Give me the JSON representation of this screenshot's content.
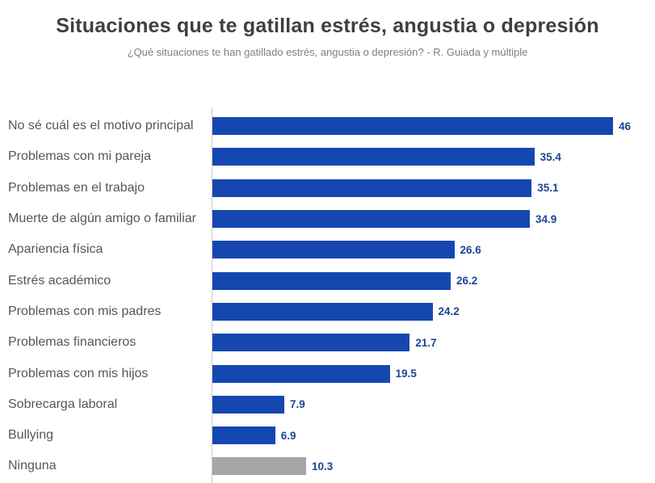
{
  "chart_data": {
    "type": "bar",
    "orientation": "horizontal",
    "title": "Situaciones que te gatillan estrés, angustia o depresión",
    "subtitle": "¿Qué situaciones te han gatillado estrés, angustia o depresión? - R. Guiada y múltiple",
    "categories": [
      "No sé cuál es el motivo principal",
      "Problemas con mi pareja",
      "Problemas en el trabajo",
      "Muerte de algún amigo o familiar",
      "Apariencia física",
      "Estrés académico",
      "Problemas con mis padres",
      "Problemas financieros",
      "Problemas con mis hijos",
      "Sobrecarga laboral",
      "Bullying",
      "Ninguna"
    ],
    "values": [
      46,
      35.4,
      35.1,
      34.9,
      26.6,
      26.2,
      24.2,
      21.7,
      19.5,
      7.9,
      6.9,
      10.3
    ],
    "value_labels": [
      "46",
      "35.4",
      "35.1",
      "34.9",
      "26.6",
      "26.2",
      "24.2",
      "21.7",
      "19.5",
      "7.9",
      "6.9",
      "10.3"
    ],
    "bar_colors": [
      "#1547B1",
      "#1547B1",
      "#1547B1",
      "#1547B1",
      "#1547B1",
      "#1547B1",
      "#1547B1",
      "#1547B1",
      "#1547B1",
      "#1547B1",
      "#1547B1",
      "#A6A6A6"
    ],
    "highlight_category": "Ninguna",
    "xlim": [
      0,
      46
    ],
    "grid": false,
    "data_labels": true,
    "legend": "none",
    "colors": {
      "bar": "#1547B1",
      "highlight_bar": "#A6A6A6",
      "value_label": "#1B4693",
      "category_label": "#565656",
      "axis_line": "#C9C9C9",
      "title": "#3F3F3F",
      "subtitle": "#7F7F7F",
      "background": "#FFFFFF"
    }
  }
}
